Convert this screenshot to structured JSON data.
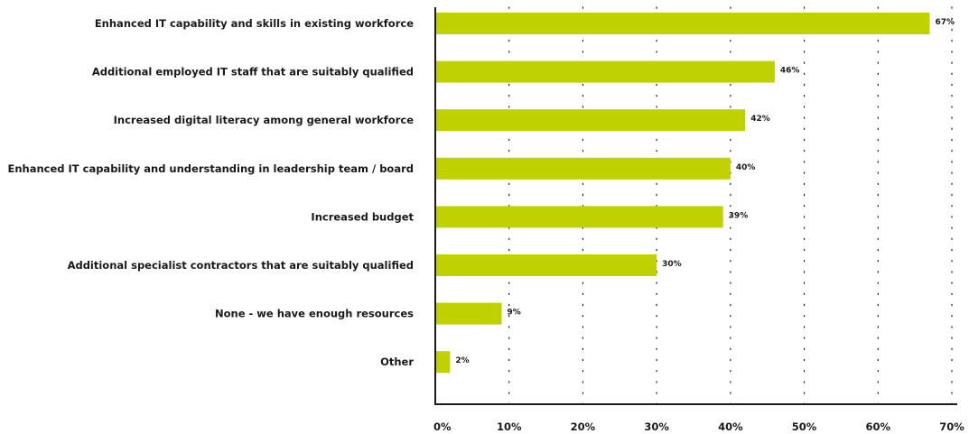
{
  "chart_data": {
    "type": "bar",
    "orientation": "horizontal",
    "title": "",
    "xlabel": "",
    "ylabel": "",
    "categories": [
      "Enhanced IT capability and skills in existing workforce",
      "Additional employed IT staff that are suitably qualified",
      "Increased digital literacy among general workforce",
      "Enhanced IT capability and understanding in leadership team / board",
      "Increased budget",
      "Additional specialist contractors that are suitably qualified",
      "None - we have enough resources",
      "Other"
    ],
    "values": [
      67,
      46,
      42,
      40,
      39,
      30,
      9,
      2
    ],
    "value_labels": [
      "67%",
      "46%",
      "42%",
      "40%",
      "39%",
      "30%",
      "9%",
      "2%"
    ],
    "xlim": [
      0,
      70
    ],
    "x_ticks": [
      0,
      10,
      20,
      30,
      40,
      50,
      60,
      70
    ],
    "x_tick_labels": [
      "0%",
      "10%",
      "20%",
      "30%",
      "40%",
      "50%",
      "60%",
      "70%"
    ],
    "grid": "vertical dotted",
    "legend": "none",
    "colors": {
      "bar": "#bfd200",
      "text": "#1a1a1a",
      "axis": "#1a1a1a",
      "grid": "#1a1a1a"
    }
  }
}
